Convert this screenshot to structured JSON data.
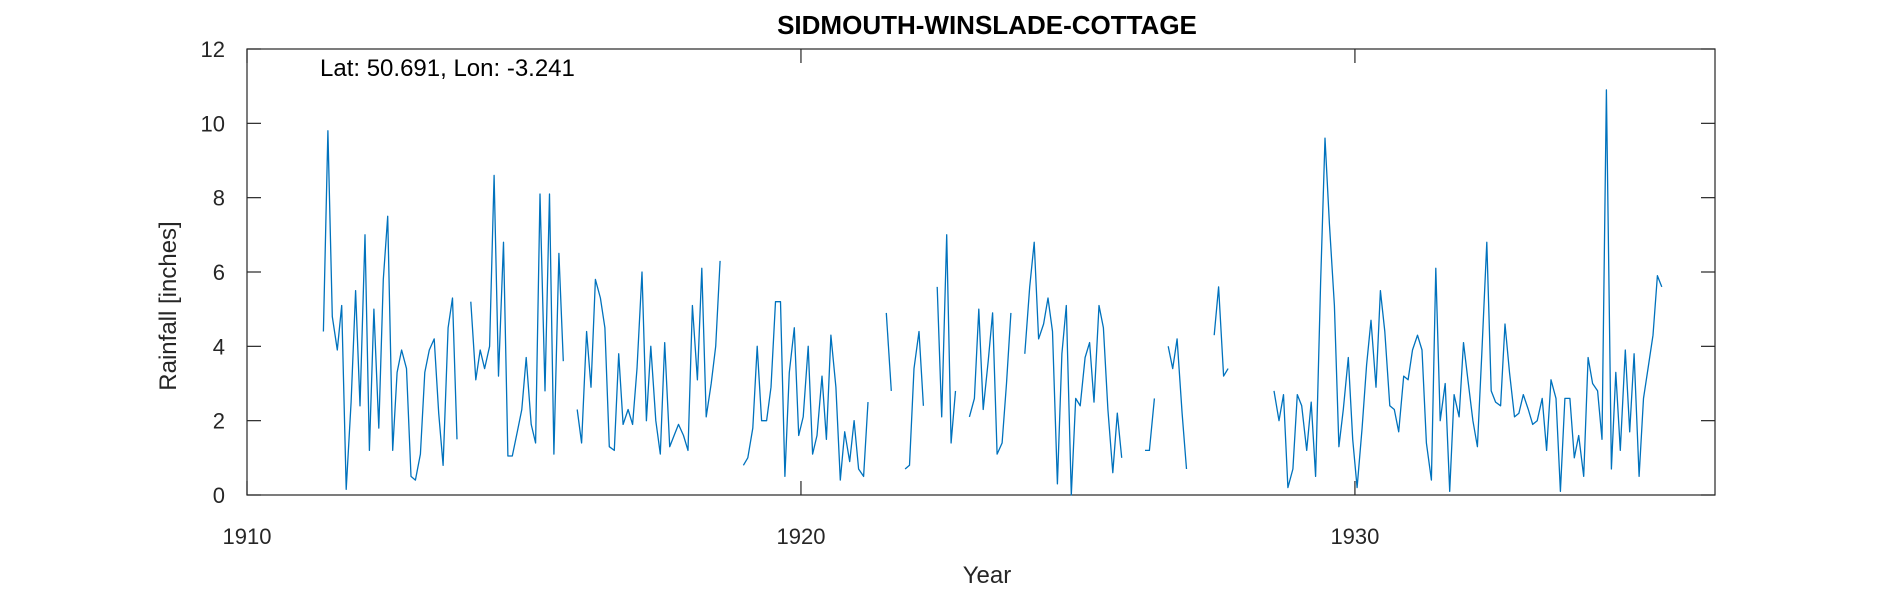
{
  "chart_data": {
    "type": "line",
    "title": "SIDMOUTH-WINSLADE-COTTAGE",
    "annotation": "Lat: 50.691, Lon: -3.241",
    "xlabel": "Year",
    "ylabel": "Rainfall [inches]",
    "xlim": [
      1910,
      1936.5
    ],
    "ylim": [
      0,
      12
    ],
    "xticks": [
      1910,
      1920,
      1930
    ],
    "yticks": [
      0,
      2,
      4,
      6,
      8,
      10,
      12
    ],
    "grid": false,
    "line_color": "#0072BD",
    "series": [
      {
        "segments": [
          [
            [
              1911.38,
              4.4
            ],
            [
              1911.46,
              9.8
            ],
            [
              1911.54,
              4.8
            ],
            [
              1911.63,
              3.9
            ],
            [
              1911.71,
              5.1
            ],
            [
              1911.79,
              0.15
            ],
            [
              1911.88,
              2.5
            ],
            [
              1911.96,
              5.5
            ],
            [
              1912.04,
              2.4
            ],
            [
              1912.13,
              7.0
            ],
            [
              1912.21,
              1.2
            ],
            [
              1912.29,
              5.0
            ],
            [
              1912.38,
              1.8
            ],
            [
              1912.46,
              5.8
            ],
            [
              1912.54,
              7.5
            ],
            [
              1912.63,
              1.2
            ],
            [
              1912.71,
              3.3
            ],
            [
              1912.79,
              3.9
            ],
            [
              1912.88,
              3.4
            ],
            [
              1912.96,
              0.5
            ],
            [
              1913.04,
              0.4
            ],
            [
              1913.13,
              1.1
            ],
            [
              1913.21,
              3.3
            ],
            [
              1913.29,
              3.9
            ],
            [
              1913.38,
              4.2
            ],
            [
              1913.46,
              2.2
            ],
            [
              1913.54,
              0.8
            ],
            [
              1913.63,
              4.5
            ],
            [
              1913.71,
              5.3
            ],
            [
              1913.79,
              1.5
            ]
          ],
          [
            [
              1914.04,
              5.2
            ],
            [
              1914.13,
              3.1
            ],
            [
              1914.21,
              3.9
            ],
            [
              1914.29,
              3.4
            ],
            [
              1914.38,
              4.0
            ],
            [
              1914.46,
              8.6
            ],
            [
              1914.54,
              3.2
            ],
            [
              1914.63,
              6.8
            ],
            [
              1914.71,
              1.05
            ],
            [
              1914.79,
              1.05
            ],
            [
              1914.88,
              1.7
            ],
            [
              1914.96,
              2.3
            ],
            [
              1915.04,
              3.7
            ],
            [
              1915.13,
              1.9
            ],
            [
              1915.21,
              1.4
            ],
            [
              1915.29,
              8.1
            ],
            [
              1915.38,
              2.8
            ],
            [
              1915.46,
              8.1
            ],
            [
              1915.54,
              1.1
            ],
            [
              1915.63,
              6.5
            ],
            [
              1915.71,
              3.6
            ]
          ],
          [
            [
              1915.96,
              2.3
            ],
            [
              1916.04,
              1.4
            ],
            [
              1916.13,
              4.4
            ],
            [
              1916.21,
              2.9
            ],
            [
              1916.29,
              5.8
            ],
            [
              1916.38,
              5.3
            ],
            [
              1916.46,
              4.5
            ],
            [
              1916.54,
              1.3
            ],
            [
              1916.63,
              1.2
            ],
            [
              1916.71,
              3.8
            ],
            [
              1916.79,
              1.9
            ],
            [
              1916.88,
              2.3
            ],
            [
              1916.96,
              1.9
            ],
            [
              1917.04,
              3.4
            ],
            [
              1917.13,
              6.0
            ],
            [
              1917.21,
              2.0
            ],
            [
              1917.29,
              4.0
            ],
            [
              1917.38,
              2.0
            ],
            [
              1917.46,
              1.1
            ],
            [
              1917.54,
              4.1
            ],
            [
              1917.63,
              1.3
            ],
            [
              1917.71,
              1.6
            ],
            [
              1917.79,
              1.9
            ],
            [
              1917.88,
              1.6
            ],
            [
              1917.96,
              1.2
            ],
            [
              1918.04,
              5.1
            ],
            [
              1918.13,
              3.1
            ],
            [
              1918.21,
              6.1
            ],
            [
              1918.29,
              2.1
            ],
            [
              1918.38,
              3.0
            ],
            [
              1918.46,
              4.0
            ],
            [
              1918.54,
              6.3
            ]
          ],
          [
            [
              1918.96,
              0.8
            ],
            [
              1919.04,
              1.0
            ],
            [
              1919.13,
              1.8
            ],
            [
              1919.21,
              4.0
            ],
            [
              1919.29,
              2.0
            ],
            [
              1919.38,
              2.0
            ],
            [
              1919.46,
              2.9
            ],
            [
              1919.54,
              5.2
            ],
            [
              1919.63,
              5.2
            ],
            [
              1919.71,
              0.5
            ],
            [
              1919.79,
              3.3
            ],
            [
              1919.88,
              4.5
            ],
            [
              1919.96,
              1.6
            ],
            [
              1920.04,
              2.1
            ],
            [
              1920.13,
              4.0
            ],
            [
              1920.21,
              1.1
            ],
            [
              1920.29,
              1.6
            ],
            [
              1920.38,
              3.2
            ],
            [
              1920.46,
              1.5
            ],
            [
              1920.54,
              4.3
            ],
            [
              1920.63,
              2.9
            ],
            [
              1920.71,
              0.4
            ],
            [
              1920.79,
              1.7
            ],
            [
              1920.88,
              0.9
            ],
            [
              1920.96,
              2.0
            ],
            [
              1921.04,
              0.7
            ],
            [
              1921.13,
              0.5
            ],
            [
              1921.21,
              2.5
            ]
          ],
          [
            [
              1921.54,
              4.9
            ],
            [
              1921.63,
              2.8
            ]
          ],
          [
            [
              1921.88,
              0.7
            ],
            [
              1921.96,
              0.8
            ],
            [
              1922.04,
              3.4
            ],
            [
              1922.13,
              4.4
            ],
            [
              1922.21,
              2.4
            ]
          ],
          [
            [
              1922.46,
              5.6
            ],
            [
              1922.54,
              2.1
            ],
            [
              1922.63,
              7.0
            ],
            [
              1922.71,
              1.4
            ],
            [
              1922.79,
              2.8
            ]
          ],
          [
            [
              1923.04,
              2.1
            ],
            [
              1923.13,
              2.6
            ],
            [
              1923.21,
              5.0
            ],
            [
              1923.29,
              2.3
            ],
            [
              1923.38,
              3.6
            ],
            [
              1923.46,
              4.9
            ],
            [
              1923.54,
              1.1
            ],
            [
              1923.63,
              1.4
            ],
            [
              1923.71,
              3.0
            ],
            [
              1923.79,
              4.9
            ]
          ],
          [
            [
              1924.04,
              3.8
            ],
            [
              1924.13,
              5.6
            ],
            [
              1924.21,
              6.8
            ],
            [
              1924.29,
              4.2
            ],
            [
              1924.38,
              4.6
            ],
            [
              1924.46,
              5.3
            ],
            [
              1924.54,
              4.4
            ],
            [
              1924.63,
              0.3
            ],
            [
              1924.71,
              3.8
            ],
            [
              1924.79,
              5.1
            ],
            [
              1924.88,
              0.0
            ],
            [
              1924.96,
              2.6
            ],
            [
              1925.04,
              2.4
            ],
            [
              1925.13,
              3.7
            ],
            [
              1925.21,
              4.1
            ],
            [
              1925.29,
              2.5
            ],
            [
              1925.38,
              5.1
            ],
            [
              1925.46,
              4.5
            ],
            [
              1925.54,
              2.3
            ],
            [
              1925.63,
              0.6
            ],
            [
              1925.71,
              2.2
            ],
            [
              1925.79,
              1.0
            ]
          ],
          [
            [
              1926.21,
              1.2
            ],
            [
              1926.29,
              1.2
            ],
            [
              1926.38,
              2.6
            ]
          ],
          [
            [
              1926.63,
              4.0
            ],
            [
              1926.71,
              3.4
            ],
            [
              1926.79,
              4.2
            ],
            [
              1926.88,
              2.2
            ],
            [
              1926.96,
              0.7
            ]
          ],
          [
            [
              1927.46,
              4.3
            ],
            [
              1927.54,
              5.6
            ],
            [
              1927.63,
              3.2
            ],
            [
              1927.71,
              3.4
            ]
          ],
          [
            [
              1928.54,
              2.8
            ],
            [
              1928.63,
              2.0
            ],
            [
              1928.71,
              2.7
            ],
            [
              1928.79,
              0.2
            ],
            [
              1928.88,
              0.7
            ],
            [
              1928.96,
              2.7
            ],
            [
              1929.04,
              2.4
            ],
            [
              1929.13,
              1.2
            ],
            [
              1929.21,
              2.5
            ],
            [
              1929.29,
              0.5
            ],
            [
              1929.38,
              5.7
            ],
            [
              1929.46,
              9.6
            ],
            [
              1929.54,
              7.3
            ],
            [
              1929.63,
              5.1
            ],
            [
              1929.71,
              1.3
            ],
            [
              1929.79,
              2.3
            ],
            [
              1929.88,
              3.7
            ],
            [
              1929.96,
              1.5
            ],
            [
              1930.04,
              0.2
            ],
            [
              1930.13,
              1.8
            ],
            [
              1930.21,
              3.5
            ],
            [
              1930.29,
              4.7
            ],
            [
              1930.38,
              2.9
            ],
            [
              1930.46,
              5.5
            ],
            [
              1930.54,
              4.4
            ],
            [
              1930.63,
              2.4
            ],
            [
              1930.71,
              2.3
            ],
            [
              1930.79,
              1.7
            ],
            [
              1930.88,
              3.2
            ],
            [
              1930.96,
              3.1
            ],
            [
              1931.04,
              3.9
            ],
            [
              1931.13,
              4.3
            ],
            [
              1931.21,
              3.9
            ],
            [
              1931.29,
              1.4
            ],
            [
              1931.38,
              0.4
            ],
            [
              1931.46,
              6.1
            ],
            [
              1931.54,
              2.0
            ],
            [
              1931.63,
              3.0
            ],
            [
              1931.71,
              0.1
            ],
            [
              1931.79,
              2.7
            ],
            [
              1931.88,
              2.1
            ],
            [
              1931.96,
              4.1
            ],
            [
              1932.04,
              3.1
            ],
            [
              1932.13,
              2.0
            ],
            [
              1932.21,
              1.3
            ],
            [
              1932.29,
              3.8
            ],
            [
              1932.38,
              6.8
            ],
            [
              1932.46,
              2.8
            ],
            [
              1932.54,
              2.5
            ],
            [
              1932.63,
              2.4
            ],
            [
              1932.71,
              4.6
            ],
            [
              1932.79,
              3.3
            ],
            [
              1932.88,
              2.1
            ],
            [
              1932.96,
              2.2
            ],
            [
              1933.04,
              2.7
            ],
            [
              1933.13,
              2.3
            ],
            [
              1933.21,
              1.9
            ],
            [
              1933.29,
              2.0
            ],
            [
              1933.38,
              2.6
            ],
            [
              1933.46,
              1.2
            ],
            [
              1933.54,
              3.1
            ],
            [
              1933.63,
              2.6
            ],
            [
              1933.71,
              0.1
            ],
            [
              1933.79,
              2.6
            ],
            [
              1933.88,
              2.6
            ],
            [
              1933.96,
              1.0
            ],
            [
              1934.04,
              1.6
            ],
            [
              1934.13,
              0.5
            ],
            [
              1934.21,
              3.7
            ],
            [
              1934.29,
              3.0
            ],
            [
              1934.38,
              2.8
            ],
            [
              1934.46,
              1.5
            ],
            [
              1934.54,
              10.9
            ],
            [
              1934.63,
              0.7
            ],
            [
              1934.71,
              3.3
            ],
            [
              1934.79,
              1.2
            ],
            [
              1934.88,
              3.9
            ],
            [
              1934.96,
              1.7
            ],
            [
              1935.04,
              3.8
            ],
            [
              1935.13,
              0.5
            ],
            [
              1935.21,
              2.6
            ],
            [
              1935.29,
              3.4
            ],
            [
              1935.38,
              4.3
            ],
            [
              1935.46,
              5.9
            ],
            [
              1935.54,
              5.6
            ]
          ]
        ]
      }
    ]
  }
}
